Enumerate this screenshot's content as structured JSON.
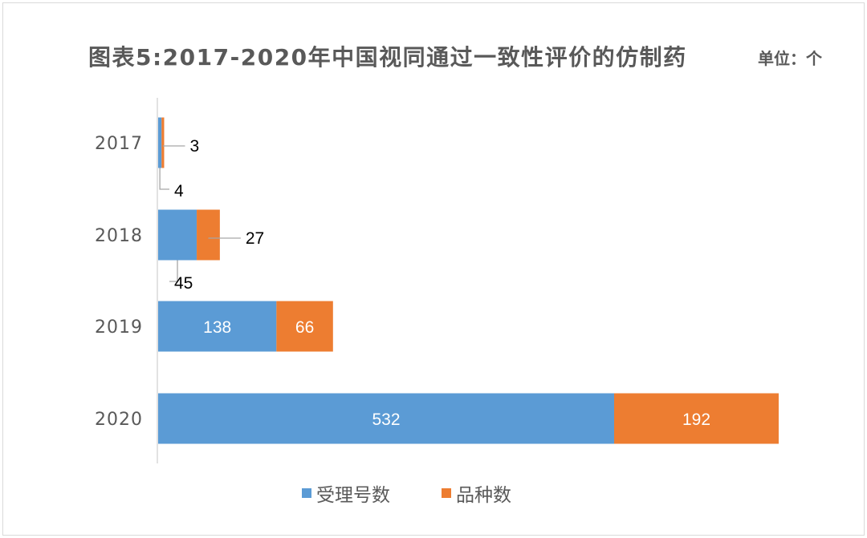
{
  "unit_label": "单位：个",
  "chart_data": {
    "type": "bar",
    "orientation": "horizontal",
    "stacked": true,
    "title": "图表5:2017-2020年中国视同通过一致性评价的仿制药",
    "categories": [
      "2017",
      "2018",
      "2019",
      "2020"
    ],
    "series": [
      {
        "name": "受理号数",
        "color": "#5b9bd5",
        "values": [
          4,
          45,
          138,
          532
        ]
      },
      {
        "name": "品种数",
        "color": "#ed7d31",
        "values": [
          3,
          27,
          66,
          192
        ]
      }
    ],
    "legend": "bottom",
    "grid": false
  }
}
